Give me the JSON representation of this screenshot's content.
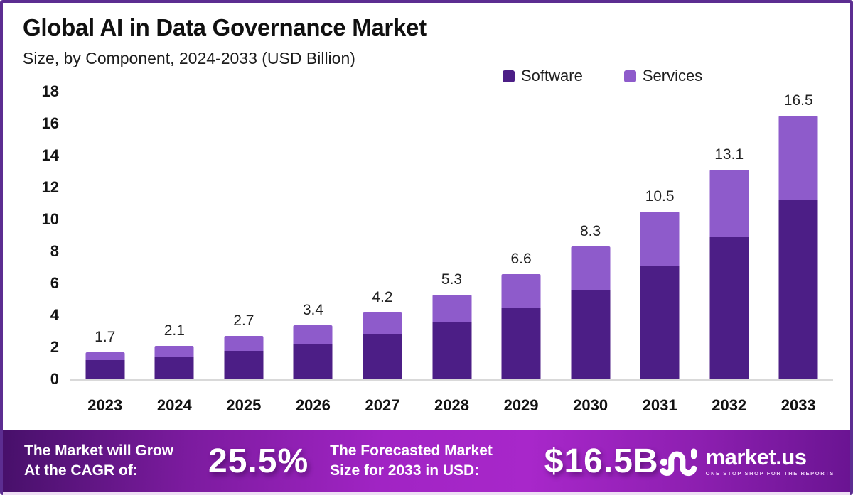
{
  "header": {
    "title": "Global AI in Data Governance Market",
    "subtitle": "Size, by Component, 2024-2033 (USD Billion)"
  },
  "chart_data": {
    "type": "bar",
    "stacked": true,
    "title": "Global AI in Data Governance Market Size, by Component, 2024-2033 (USD Billion)",
    "categories": [
      "2023",
      "2024",
      "2025",
      "2026",
      "2027",
      "2028",
      "2029",
      "2030",
      "2031",
      "2032",
      "2033"
    ],
    "series": [
      {
        "name": "Software",
        "color": "#4c1e86",
        "values": [
          1.2,
          1.4,
          1.8,
          2.2,
          2.8,
          3.6,
          4.5,
          5.6,
          7.1,
          8.9,
          11.2
        ]
      },
      {
        "name": "Services",
        "color": "#8e5bcb",
        "values": [
          0.5,
          0.7,
          0.9,
          1.2,
          1.4,
          1.7,
          2.1,
          2.7,
          3.4,
          4.2,
          5.3
        ]
      }
    ],
    "totals": [
      1.7,
      2.1,
      2.7,
      3.4,
      4.2,
      5.3,
      6.6,
      8.3,
      10.5,
      13.1,
      16.5
    ],
    "xlabel": "",
    "ylabel": "",
    "ylim": [
      0,
      18
    ],
    "ytick_step": 2,
    "grid": false,
    "legend_position": "top-right",
    "baseline_color": "#d9d9d9"
  },
  "banner": {
    "cagr_label_line1": "The Market will Grow",
    "cagr_label_line2": "At the CAGR of:",
    "cagr_value": "25.5%",
    "forecast_label_line1": "The Forecasted Market",
    "forecast_label_line2": "Size for 2033 in USD:",
    "forecast_value": "$16.5B",
    "logo_text": "market.us",
    "logo_tagline": "ONE STOP SHOP FOR THE REPORTS"
  },
  "colors": {
    "frame_border": "#5c2d91",
    "banner_gradient_start": "#47106a",
    "banner_gradient_mid": "#a827ca",
    "banner_gradient_end": "#6a1492",
    "text_dark": "#101010"
  }
}
